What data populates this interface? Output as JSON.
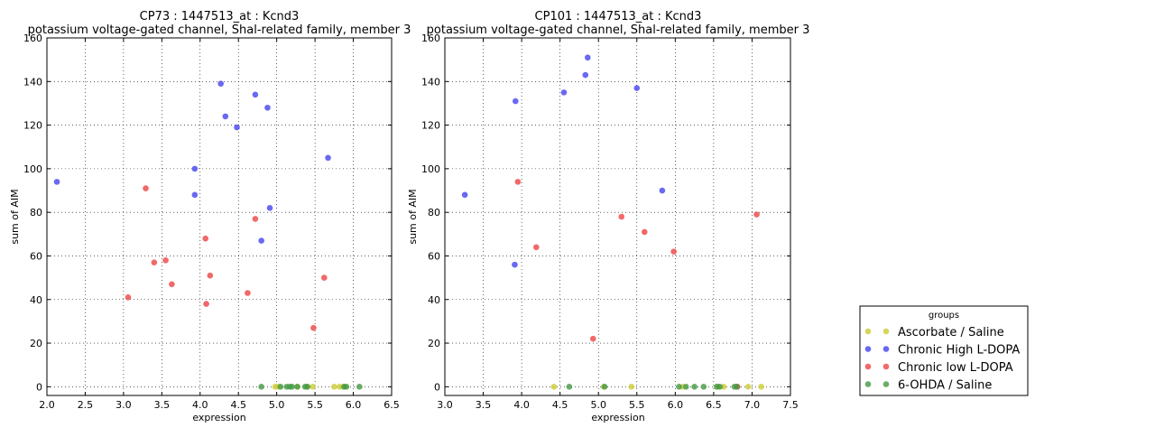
{
  "chart_data": [
    {
      "type": "scatter",
      "title_line1": "CP73 : 1447513_at : Kcnd3",
      "title_line2": "potassium voltage-gated channel, Shal-related family, member 3",
      "xlabel": "expression",
      "ylabel": "sum of AIM",
      "xlim": [
        2.0,
        6.5
      ],
      "ylim": [
        -4,
        160
      ],
      "xticks": [
        "2.0",
        "2.5",
        "3.0",
        "3.5",
        "4.0",
        "4.5",
        "5.0",
        "5.5",
        "6.0",
        "6.5"
      ],
      "yticks": [
        "0",
        "20",
        "40",
        "60",
        "80",
        "100",
        "120",
        "140",
        "160"
      ],
      "grid": true,
      "series": [
        {
          "name": "Ascorbate / Saline",
          "color": "#cccc33",
          "points": [
            [
              4.98,
              0
            ],
            [
              5.02,
              0
            ],
            [
              5.27,
              0
            ],
            [
              5.4,
              0
            ],
            [
              5.47,
              0
            ],
            [
              5.75,
              0
            ],
            [
              5.82,
              0
            ],
            [
              5.87,
              0
            ]
          ]
        },
        {
          "name": "Chronic High L-DOPA",
          "color": "#4444ee",
          "points": [
            [
              2.13,
              94
            ],
            [
              3.93,
              100
            ],
            [
              3.93,
              88
            ],
            [
              4.27,
              139
            ],
            [
              4.33,
              124
            ],
            [
              4.48,
              119
            ],
            [
              4.72,
              134
            ],
            [
              4.8,
              67
            ],
            [
              4.88,
              128
            ],
            [
              4.91,
              82
            ],
            [
              5.67,
              105
            ]
          ]
        },
        {
          "name": "Chronic low L-DOPA",
          "color": "#ee4444",
          "points": [
            [
              3.06,
              41
            ],
            [
              3.29,
              91
            ],
            [
              3.4,
              57
            ],
            [
              3.55,
              58
            ],
            [
              3.63,
              47
            ],
            [
              4.07,
              68
            ],
            [
              4.08,
              38
            ],
            [
              4.13,
              51
            ],
            [
              4.62,
              43
            ],
            [
              4.72,
              77
            ],
            [
              5.48,
              27
            ],
            [
              5.62,
              50
            ]
          ]
        },
        {
          "name": "6-OHDA / Saline",
          "color": "#449944",
          "points": [
            [
              4.8,
              0
            ],
            [
              5.05,
              0
            ],
            [
              5.13,
              0
            ],
            [
              5.17,
              0
            ],
            [
              5.2,
              0
            ],
            [
              5.27,
              0
            ],
            [
              5.37,
              0
            ],
            [
              5.4,
              0
            ],
            [
              5.88,
              0
            ],
            [
              5.91,
              0
            ],
            [
              6.08,
              0
            ]
          ]
        }
      ]
    },
    {
      "type": "scatter",
      "title_line1": "CP101 : 1447513_at : Kcnd3",
      "title_line2": "potassium voltage-gated channel, Shal-related family, member 3",
      "xlabel": "expression",
      "ylabel": "sum of AIM",
      "xlim": [
        3.0,
        7.5
      ],
      "ylim": [
        -4,
        160
      ],
      "xticks": [
        "3.0",
        "3.5",
        "4.0",
        "4.5",
        "5.0",
        "5.5",
        "6.0",
        "6.5",
        "7.0",
        "7.5"
      ],
      "yticks": [
        "0",
        "20",
        "40",
        "60",
        "80",
        "100",
        "120",
        "140",
        "160"
      ],
      "grid": true,
      "series": [
        {
          "name": "Ascorbate / Saline",
          "color": "#cccc33",
          "points": [
            [
              4.42,
              0
            ],
            [
              5.07,
              0
            ],
            [
              5.43,
              0
            ],
            [
              6.1,
              0
            ],
            [
              6.56,
              0
            ],
            [
              6.63,
              0
            ],
            [
              6.95,
              0
            ],
            [
              7.12,
              0
            ]
          ]
        },
        {
          "name": "Chronic High L-DOPA",
          "color": "#4444ee",
          "points": [
            [
              3.26,
              88
            ],
            [
              3.91,
              56
            ],
            [
              3.92,
              131
            ],
            [
              4.55,
              135
            ],
            [
              4.83,
              143
            ],
            [
              4.86,
              151
            ],
            [
              5.5,
              137
            ],
            [
              5.83,
              90
            ]
          ]
        },
        {
          "name": "Chronic low L-DOPA",
          "color": "#ee4444",
          "points": [
            [
              3.95,
              94
            ],
            [
              4.19,
              64
            ],
            [
              4.93,
              22
            ],
            [
              5.3,
              78
            ],
            [
              5.6,
              71
            ],
            [
              5.98,
              62
            ],
            [
              6.81,
              0
            ],
            [
              7.06,
              79
            ]
          ]
        },
        {
          "name": "6-OHDA / Saline",
          "color": "#449944",
          "points": [
            [
              4.62,
              0
            ],
            [
              5.08,
              0
            ],
            [
              6.05,
              0
            ],
            [
              6.14,
              0
            ],
            [
              6.25,
              0
            ],
            [
              6.37,
              0
            ],
            [
              6.54,
              0
            ],
            [
              6.58,
              0
            ],
            [
              6.77,
              0
            ],
            [
              6.8,
              0
            ]
          ]
        }
      ]
    }
  ],
  "legend": {
    "title": "groups",
    "position": "bottom-right, outside plots",
    "items": [
      {
        "label": "Ascorbate / Saline",
        "color": "#cccc33"
      },
      {
        "label": "Chronic High L-DOPA",
        "color": "#4444ee"
      },
      {
        "label": "Chronic low L-DOPA",
        "color": "#ee4444"
      },
      {
        "label": "6-OHDA / Saline",
        "color": "#449944"
      }
    ]
  }
}
